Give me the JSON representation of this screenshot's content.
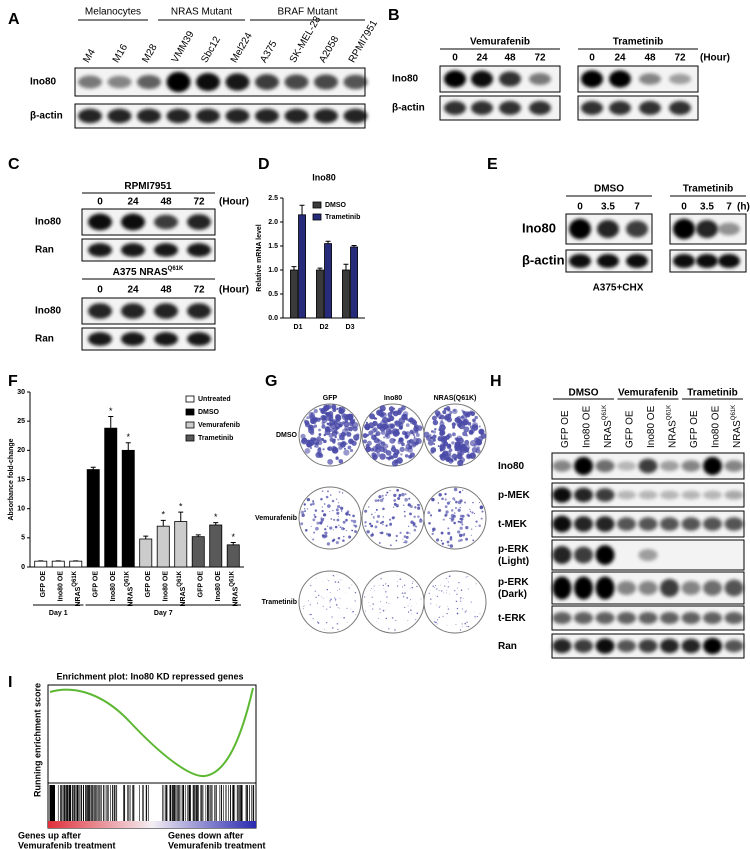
{
  "panels": {
    "A": {
      "label": "A",
      "groups": [
        "Melanocytes",
        "NRAS Mutant",
        "BRAF Mutant"
      ],
      "lanes": [
        "M4",
        "M16",
        "M28",
        "VMM39",
        "Sbc12",
        "Mel224",
        "A375",
        "SK-MEL-28",
        "A2058",
        "RPMI7951"
      ],
      "rows": [
        "Ino80",
        "β-actin"
      ]
    },
    "B": {
      "label": "B",
      "groups": [
        "Vemurafenib",
        "Trametinib"
      ],
      "times": [
        "0",
        "24",
        "48",
        "72"
      ],
      "unit": "(Hour)",
      "rows": [
        "Ino80",
        "β-actin"
      ]
    },
    "C": {
      "label": "C",
      "blots": [
        {
          "title": "RPMI7951",
          "rows": [
            "Ino80",
            "Ran"
          ]
        },
        {
          "title": "A375 NRAS",
          "title_sup": "Q61K",
          "rows": [
            "Ino80",
            "Ran"
          ]
        }
      ],
      "times": [
        "0",
        "24",
        "48",
        "72"
      ],
      "unit": "(Hour)"
    },
    "D": {
      "label": "D"
    },
    "E": {
      "label": "E",
      "groups": [
        "DMSO",
        "Trametinib"
      ],
      "times": [
        "0",
        "3.5",
        "7"
      ],
      "unit": "(h)",
      "rows": [
        "Ino80",
        "β-actin"
      ],
      "caption": "A375+CHX"
    },
    "F": {
      "label": "F"
    },
    "G": {
      "label": "G",
      "columns": [
        "GFP",
        "Ino80",
        "NRAS(Q61K)"
      ],
      "rows": [
        "DMSO",
        "Vemurafenib",
        "Trametinib"
      ]
    },
    "H": {
      "label": "H",
      "groups": [
        "DMSO",
        "Vemurafenib",
        "Trametinib"
      ],
      "lanes": [
        "GFP OE",
        "Ino80 OE",
        "NRAS",
        "GFP OE",
        "Ino80 OE",
        "NRAS",
        "GFP OE",
        "Ino80 OE",
        "NRAS"
      ],
      "lane_sups": [
        null,
        null,
        "Q61K",
        null,
        null,
        "Q61K",
        null,
        null,
        "Q61K"
      ],
      "rows": [
        [
          "Ino80"
        ],
        [
          "p-MEK"
        ],
        [
          "t-MEK"
        ],
        [
          "p-ERK",
          "(Light)"
        ],
        [
          "p-ERK",
          "(Dark)"
        ],
        [
          "t-ERK"
        ],
        [
          "Ran"
        ]
      ]
    },
    "I": {
      "label": "I",
      "title": "Enrichment plot: Ino80 KD repressed genes",
      "y_label": "Running enrichment score",
      "left": [
        "Genes up after",
        "Vemurafenib treatment"
      ],
      "right": [
        "Genes down after",
        "Vemurafenib treatment"
      ]
    }
  },
  "chart_data": [
    {
      "type": "bar",
      "title": "Ino80",
      "y_label": "Relative mRNA level",
      "categories": [
        "D1",
        "D2",
        "D3"
      ],
      "series": [
        {
          "name": "DMSO",
          "color": "#3a3a3a",
          "values": [
            1.0,
            1.0,
            1.0
          ],
          "errors": [
            0.07,
            0.04,
            0.12
          ]
        },
        {
          "name": "Trametinib",
          "color": "#262b7a",
          "values": [
            2.15,
            1.55,
            1.48
          ],
          "errors": [
            0.2,
            0.05,
            0.03
          ]
        }
      ],
      "ylim": [
        0,
        2.5
      ],
      "yticks": [
        {
          "value": 0,
          "label": "0.0"
        },
        0.5,
        {
          "value": 1,
          "label": "1.0"
        },
        1.5,
        {
          "value": 2,
          "label": "2.0"
        },
        2.5
      ],
      "legend": "upper right"
    },
    {
      "type": "bar",
      "y_label": "Absorbance fold-change",
      "categories": [
        "GFP OE",
        "Ino80 OE",
        "NRAS",
        "GFP OE",
        "Ino80 OE",
        "NRAS",
        "GFP OE",
        "Ino80 OE",
        "NRAS",
        "GFP OE",
        "Ino80 OE",
        "NRAS"
      ],
      "category_sups": [
        null,
        null,
        "Q61K",
        null,
        null,
        "Q61K",
        null,
        null,
        "Q61K",
        null,
        null,
        "Q61K"
      ],
      "x_groups": [
        {
          "label": "Day 1",
          "count": 3
        },
        {
          "label": "Day 7",
          "count": 9
        }
      ],
      "series": [
        {
          "name": "Untreated",
          "color": "#ffffff",
          "values": [
            1.0,
            1.0,
            1.0,
            null,
            null,
            null,
            null,
            null,
            null,
            null,
            null,
            null
          ],
          "errors": [
            0.05,
            0.05,
            0.05,
            null,
            null,
            null,
            null,
            null,
            null,
            null,
            null,
            null
          ]
        },
        {
          "name": "DMSO",
          "color": "#000000",
          "values": [
            null,
            null,
            null,
            16.7,
            23.8,
            20.0,
            null,
            null,
            null,
            null,
            null,
            null
          ],
          "errors": [
            null,
            null,
            null,
            0.4,
            2.0,
            1.3,
            null,
            null,
            null,
            null,
            null,
            null
          ],
          "stars": [
            null,
            null,
            null,
            null,
            "*",
            "*",
            null,
            null,
            null,
            null,
            null,
            null
          ]
        },
        {
          "name": "Vemurafenib",
          "color": "#cccccc",
          "values": [
            null,
            null,
            null,
            null,
            null,
            null,
            4.8,
            7.0,
            7.8,
            null,
            null,
            null
          ],
          "errors": [
            null,
            null,
            null,
            null,
            null,
            null,
            0.5,
            1.0,
            1.6,
            null,
            null,
            null
          ],
          "stars": [
            null,
            null,
            null,
            null,
            null,
            null,
            null,
            "*",
            "*",
            null,
            null,
            null
          ]
        },
        {
          "name": "Trametinib",
          "color": "#595959",
          "values": [
            null,
            null,
            null,
            null,
            null,
            null,
            null,
            null,
            null,
            5.2,
            7.2,
            3.8
          ],
          "errors": [
            null,
            null,
            null,
            null,
            null,
            null,
            null,
            null,
            null,
            0.3,
            0.4,
            0.4
          ],
          "stars": [
            null,
            null,
            null,
            null,
            null,
            null,
            null,
            null,
            null,
            null,
            "*",
            "*"
          ]
        }
      ],
      "ylim": [
        0,
        30
      ],
      "yticks": [
        0,
        5,
        10,
        15,
        20,
        25,
        30
      ],
      "legend": "upper right"
    }
  ]
}
